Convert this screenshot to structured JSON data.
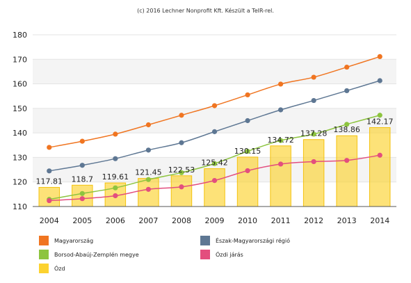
{
  "credit": "(c) 2016 Lechner Nonprofit Kft. Készült a TeIR-rel.",
  "chart_data": {
    "type": "bar",
    "categories": [
      "2004",
      "2005",
      "2006",
      "2007",
      "2008",
      "2009",
      "2010",
      "2011",
      "2012",
      "2013",
      "2014"
    ],
    "ylim": [
      110,
      180
    ],
    "yticks": [
      110,
      120,
      130,
      140,
      150,
      160,
      170,
      180
    ],
    "grid": true,
    "legend_position": "bottom",
    "bar_series": {
      "name": "Ózd",
      "color": "#fcd230",
      "values": [
        117.81,
        118.7,
        119.61,
        121.45,
        122.53,
        125.42,
        130.15,
        134.72,
        137.28,
        138.86,
        142.17
      ],
      "labels": [
        "117.81",
        "118.7",
        "119.61",
        "121.45",
        "122.53",
        "125.42",
        "130.15",
        "134.72",
        "137.28",
        "138.86",
        "142.17"
      ]
    },
    "series": [
      {
        "name": "Magyarország",
        "color": "#f07521",
        "values": [
          134.1,
          136.6,
          139.5,
          143.3,
          147.2,
          151.1,
          155.5,
          159.9,
          162.7,
          166.8,
          171.1
        ]
      },
      {
        "name": "Észak-Magyarországi régió",
        "color": "#5e7793",
        "values": [
          124.5,
          126.8,
          129.5,
          133.0,
          136.0,
          140.5,
          145.0,
          149.4,
          153.2,
          157.2,
          161.3
        ]
      },
      {
        "name": "Borsod-Abaúj-Zemplén megye",
        "color": "#8dc43f",
        "values": [
          112.9,
          115.3,
          117.6,
          121.0,
          123.8,
          127.5,
          132.5,
          136.9,
          139.5,
          143.5,
          147.2
        ]
      },
      {
        "name": "Ózdi járás",
        "color": "#e34e7e",
        "values": [
          112.4,
          113.2,
          114.4,
          117.0,
          118.0,
          120.6,
          124.6,
          127.3,
          128.3,
          128.8,
          130.9
        ]
      }
    ],
    "legend": [
      {
        "name": "Magyarország",
        "color": "#f07521"
      },
      {
        "name": "Észak-Magyarországi régió",
        "color": "#5e7793"
      },
      {
        "name": "Borsod-Abaúj-Zemplén megye",
        "color": "#8dc43f"
      },
      {
        "name": "Ózdi járás",
        "color": "#e34e7e"
      },
      {
        "name": "Ózd",
        "color": "#fcd230"
      }
    ]
  }
}
